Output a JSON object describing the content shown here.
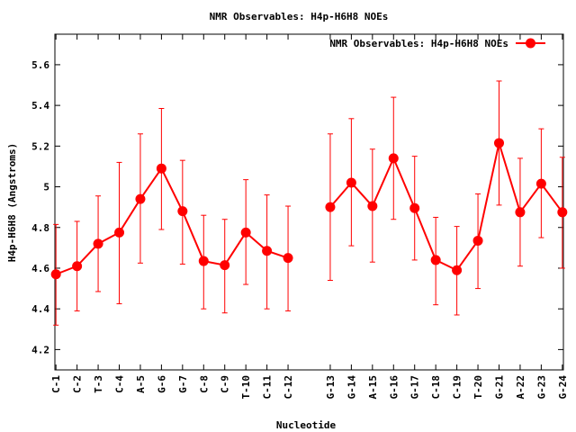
{
  "chart_data": {
    "type": "line",
    "title": "NMR Observables: H4p-H6H8 NOEs",
    "xlabel": "Nucleotide",
    "ylabel": "H4p-H6H8 (Angstroms)",
    "ylim": [
      4.1,
      5.75
    ],
    "yticks": [
      "4.2",
      "4.4",
      "4.6",
      "4.8",
      "5",
      "5.2",
      "5.4",
      "5.6"
    ],
    "legend_position": "top-right",
    "grid": false,
    "series": [
      {
        "name": "NMR Observables: H4p-H6H8 NOEs",
        "color": "#ff0000",
        "segments": [
          {
            "categories": [
              "C-1",
              "C-2",
              "T-3",
              "C-4",
              "A-5",
              "G-6",
              "G-7",
              "C-8",
              "C-9",
              "T-10",
              "C-11",
              "C-12"
            ],
            "x": [
              1,
              2,
              3,
              4,
              5,
              6,
              7,
              8,
              9,
              10,
              11,
              12
            ],
            "values": [
              4.57,
              4.61,
              4.72,
              4.775,
              4.94,
              5.09,
              4.88,
              4.635,
              4.615,
              4.775,
              4.685,
              4.65
            ],
            "err_low": [
              4.32,
              4.39,
              4.485,
              4.425,
              4.625,
              4.79,
              4.62,
              4.4,
              4.38,
              4.52,
              4.4,
              4.39
            ],
            "err_high": [
              4.815,
              4.83,
              4.955,
              5.12,
              5.26,
              5.385,
              5.13,
              4.86,
              4.84,
              5.035,
              4.96,
              4.905
            ]
          },
          {
            "categories": [
              "G-13",
              "G-14",
              "A-15",
              "G-16",
              "G-17",
              "C-18",
              "C-19",
              "T-20",
              "G-21",
              "A-22",
              "G-23",
              "G-24"
            ],
            "x": [
              14,
              15,
              16,
              17,
              18,
              19,
              20,
              21,
              22,
              23,
              24,
              25
            ],
            "values": [
              4.9,
              5.02,
              4.905,
              5.14,
              4.895,
              4.64,
              4.59,
              4.735,
              5.215,
              4.875,
              5.015,
              4.875
            ],
            "err_low": [
              4.54,
              4.71,
              4.63,
              4.84,
              4.64,
              4.42,
              4.37,
              4.5,
              4.91,
              4.61,
              4.75,
              4.6
            ],
            "err_high": [
              5.26,
              5.335,
              5.185,
              5.44,
              5.15,
              4.85,
              4.805,
              4.965,
              5.52,
              5.14,
              5.285,
              5.145
            ]
          }
        ]
      }
    ]
  }
}
